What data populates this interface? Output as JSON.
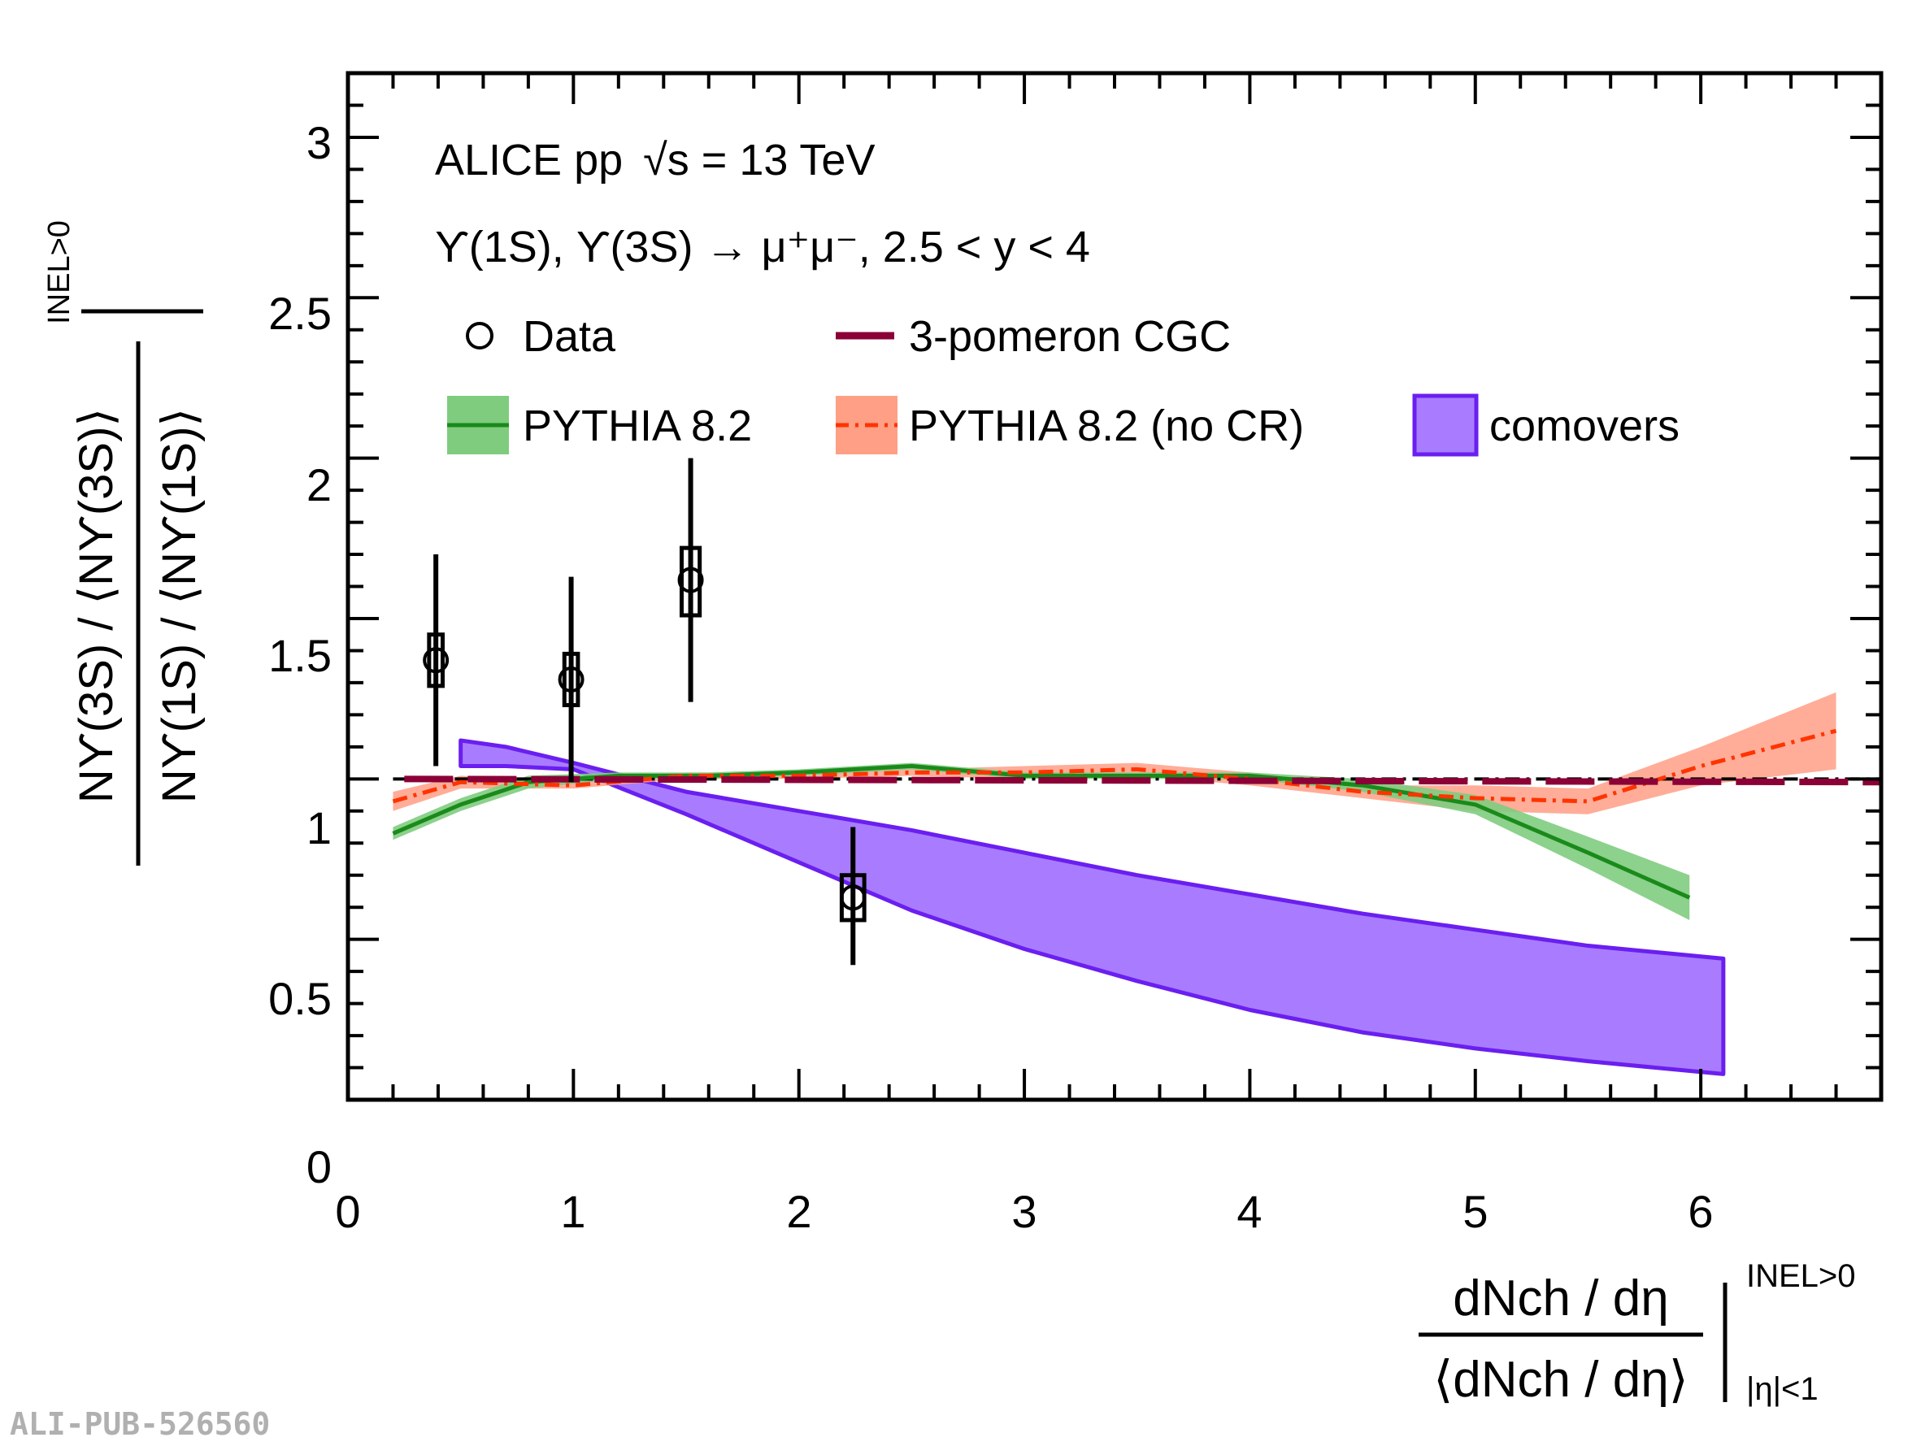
{
  "chart_data": {
    "type": "line",
    "experiment_label": "ALICE pp",
    "energy_label": "√s = 13 TeV",
    "process_label": "ϒ(1S), ϒ(3S) → μ⁺μ⁻, 2.5 < y < 4",
    "xlabel_numerator": "dNch / dη",
    "xlabel_denominator": "⟨dNch / dη⟩",
    "xlabel_sup": "INEL>0",
    "xlabel_sub": "|η|<1",
    "ylabel_numerator": "Nϒ(3S) / ⟨Nϒ(3S)⟩",
    "ylabel_denominator": "Nϒ(1S) / ⟨Nϒ(1S)⟩",
    "ylabel_sup": "INEL>0",
    "xlim": [
      0,
      6.8
    ],
    "ylim": [
      0,
      3.2
    ],
    "x_ticks": [
      "0",
      "1",
      "2",
      "3",
      "4",
      "5",
      "6"
    ],
    "y_ticks": [
      "0",
      "0.5",
      "1",
      "1.5",
      "2",
      "2.5",
      "3"
    ],
    "watermark": "ALI-PUB-526560",
    "legend": {
      "data": "Data",
      "cgc": "3-pomeron CGC",
      "pythia": "PYTHIA 8.2",
      "pythia_nocr": "PYTHIA 8.2 (no CR)",
      "comovers": "comovers"
    },
    "colors": {
      "data": "#000000",
      "cgc": "#8b0036",
      "pythia_line": "#1a8a1a",
      "pythia_band": "#7fcc7f",
      "nocr_line": "#ff3300",
      "nocr_band": "#ff9f86",
      "comovers_band": "#a97cff",
      "comovers_edge": "#6a1ff0"
    },
    "series": [
      {
        "name": "Data",
        "type": "points",
        "points": [
          {
            "x": 0.39,
            "y": 1.37,
            "stat_lo": 1.04,
            "stat_hi": 1.7,
            "sys_lo": 1.29,
            "sys_hi": 1.45,
            "sys_half_width": 0.03
          },
          {
            "x": 0.99,
            "y": 1.31,
            "stat_lo": 0.99,
            "stat_hi": 1.63,
            "sys_lo": 1.23,
            "sys_hi": 1.39,
            "sys_half_width": 0.03
          },
          {
            "x": 1.52,
            "y": 1.62,
            "stat_lo": 1.24,
            "stat_hi": 2.0,
            "sys_lo": 1.51,
            "sys_hi": 1.72,
            "sys_half_width": 0.04
          },
          {
            "x": 2.24,
            "y": 0.63,
            "stat_lo": 0.42,
            "stat_hi": 0.85,
            "sys_lo": 0.56,
            "sys_hi": 0.7,
            "sys_half_width": 0.05
          }
        ]
      },
      {
        "name": "PYTHIA 8.2",
        "type": "band",
        "x": [
          0.2,
          0.5,
          0.8,
          1.2,
          1.6,
          2.0,
          2.5,
          3.0,
          3.5,
          4.0,
          4.5,
          5.0,
          5.5,
          5.95
        ],
        "y": [
          0.83,
          0.92,
          0.99,
          1.01,
          1.01,
          1.02,
          1.04,
          1.01,
          1.01,
          1.01,
          0.98,
          0.92,
          0.77,
          0.63
        ],
        "band_lo": [
          0.81,
          0.9,
          0.97,
          1.0,
          1.0,
          1.01,
          1.03,
          1.0,
          1.0,
          1.0,
          0.96,
          0.89,
          0.72,
          0.56
        ],
        "band_hi": [
          0.85,
          0.94,
          1.01,
          1.02,
          1.02,
          1.03,
          1.05,
          1.02,
          1.02,
          1.02,
          1.0,
          0.95,
          0.82,
          0.7
        ]
      },
      {
        "name": "PYTHIA 8.2 (no CR)",
        "type": "band",
        "x": [
          0.2,
          0.5,
          1.0,
          1.5,
          2.0,
          2.5,
          3.0,
          3.5,
          4.0,
          4.5,
          5.0,
          5.5,
          6.0,
          6.6
        ],
        "y": [
          0.93,
          0.99,
          0.98,
          1.01,
          1.01,
          1.02,
          1.02,
          1.03,
          1.0,
          0.96,
          0.94,
          0.93,
          1.04,
          1.15
        ],
        "band_lo": [
          0.9,
          0.97,
          0.97,
          1.0,
          1.0,
          1.01,
          1.0,
          1.01,
          0.98,
          0.94,
          0.9,
          0.89,
          0.98,
          1.03
        ],
        "band_hi": [
          0.96,
          1.01,
          0.99,
          1.02,
          1.02,
          1.03,
          1.04,
          1.05,
          1.02,
          0.98,
          0.98,
          0.97,
          1.1,
          1.27
        ]
      },
      {
        "name": "3-pomeron CGC",
        "type": "line",
        "x": [
          0.25,
          6.8
        ],
        "y": [
          1.0,
          0.99
        ]
      },
      {
        "name": "comovers",
        "type": "band",
        "x": [
          0.5,
          0.7,
          1.0,
          1.5,
          2.0,
          2.5,
          3.0,
          3.5,
          4.0,
          4.5,
          5.0,
          5.5,
          6.1
        ],
        "band_lo": [
          1.04,
          1.04,
          1.03,
          0.89,
          0.74,
          0.59,
          0.47,
          0.37,
          0.28,
          0.21,
          0.16,
          0.12,
          0.08
        ],
        "band_hi": [
          1.12,
          1.1,
          1.05,
          0.96,
          0.9,
          0.84,
          0.77,
          0.7,
          0.64,
          0.58,
          0.53,
          0.48,
          0.44
        ]
      }
    ]
  }
}
